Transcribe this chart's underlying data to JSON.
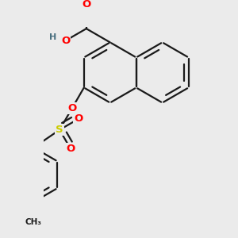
{
  "background_color": "#ebebeb",
  "bond_color": "#1a1a1a",
  "bond_width": 1.6,
  "dbo": 0.07,
  "atom_colors": {
    "O": "#ff0000",
    "S": "#cccc00",
    "H": "#4a7080",
    "C": "#1a1a1a"
  },
  "font_size": 9.5,
  "ring_r": 0.44
}
